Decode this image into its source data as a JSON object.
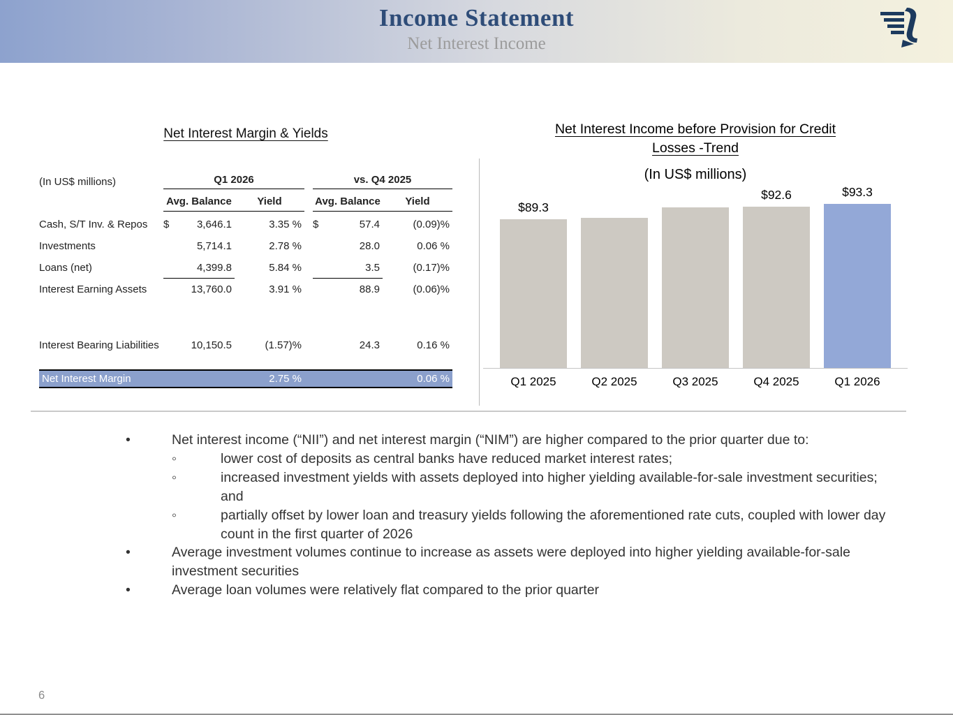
{
  "slide": {
    "title": "Income Statement",
    "subtitle": "Net Interest Income",
    "page_number": "6"
  },
  "table": {
    "title": "Net Interest Margin & Yields",
    "units_label": "(In US$ millions)",
    "column_groups": [
      "Q1 2026",
      "vs. Q4 2025"
    ],
    "sub_headers": [
      "Avg. Balance",
      "Yield",
      "Avg. Balance",
      "Yield"
    ],
    "rows": [
      [
        "Cash, S/T Inv. & Repos",
        "$",
        "3,646.1",
        "3.35 %",
        "$",
        "57.4",
        "(0.09)%"
      ],
      [
        "Investments",
        "",
        "5,714.1",
        "2.78 %",
        "",
        "28.0",
        "0.06 %"
      ],
      [
        "Loans (net)",
        "",
        "4,399.8",
        "5.84 %",
        "",
        "3.5",
        "(0.17)%"
      ],
      [
        "Interest Earning Assets",
        "",
        "13,760.0",
        "3.91 %",
        "",
        "88.9",
        "(0.06)%"
      ],
      [
        "Interest Bearing Liabilities",
        "",
        "10,150.5",
        "(1.57)%",
        "",
        "24.3",
        "0.16 %"
      ]
    ],
    "nim_row": {
      "label": "Net Interest Margin",
      "q1_yield": "2.75 %",
      "vs_yield": "0.06 %"
    }
  },
  "chart_data": {
    "type": "bar",
    "title": "Net Interest Income before Provision for Credit Losses -Trend",
    "title_lines": [
      "Net Interest Income before Provision for Credit",
      "Losses -Trend"
    ],
    "subtitle": "(In US$ millions)",
    "categories": [
      "Q1 2025",
      "Q2 2025",
      "Q3 2025",
      "Q4 2025",
      "Q1 2026"
    ],
    "values": [
      89.3,
      89.7,
      92.3,
      92.6,
      93.3
    ],
    "data_labels": [
      "$89.3",
      "",
      "",
      "$92.6",
      "$93.3"
    ],
    "ylim": [
      52,
      95
    ],
    "grid": false,
    "legend": "none",
    "bar_color": "#cdc9c2",
    "highlight_color": "#93a8d7",
    "highlight_index": 4
  },
  "bullets": [
    {
      "level": 1,
      "text": "Net interest income (“NII”) and net interest margin (“NIM”) are higher compared to the prior quarter due to:"
    },
    {
      "level": 2,
      "text": "lower cost of deposits as central banks have reduced market interest rates;"
    },
    {
      "level": 2,
      "text": "increased investment yields with assets deployed into higher yielding available-for-sale investment securities; and"
    },
    {
      "level": 2,
      "text": "partially offset by lower loan and treasury yields following the aforementioned rate cuts, coupled with lower day count in the first quarter of 2026"
    },
    {
      "level": 1,
      "text": "Average investment volumes continue to increase as assets were deployed into higher yielding available-for-sale investment securities"
    },
    {
      "level": 1,
      "text": "Average loan volumes were relatively flat compared to the prior quarter"
    }
  ]
}
